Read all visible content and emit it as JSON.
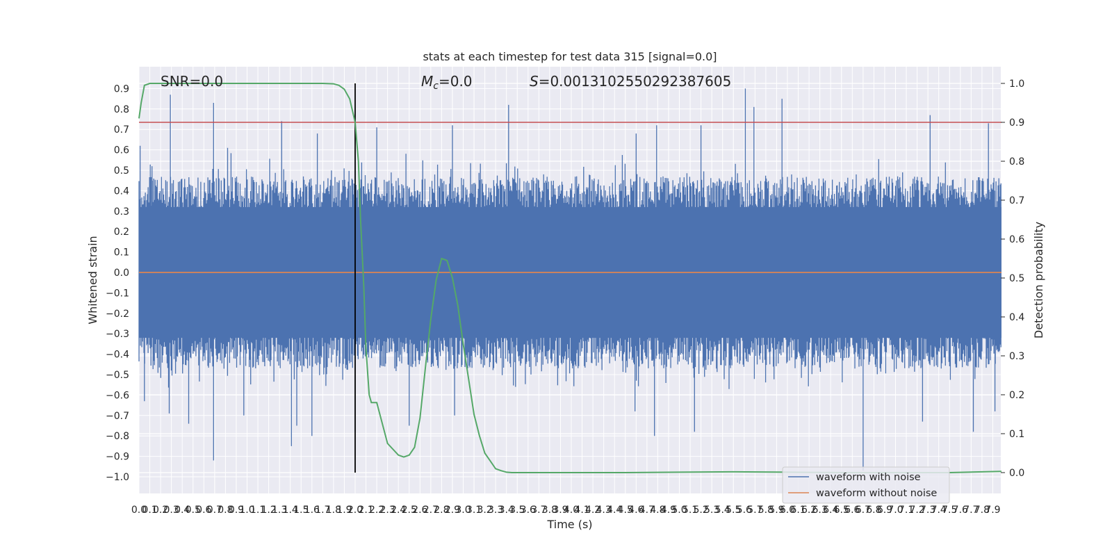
{
  "chart_data": {
    "type": "line",
    "title": "stats at each timestep for test data 315 [signal=0.0]",
    "xlabel": "Time (s)",
    "ylabel": "Whitened strain",
    "y2label": "Detection probability",
    "xlim": [
      0.0,
      8.0
    ],
    "ylim": [
      -1.1,
      1.0
    ],
    "y2lim": [
      -0.05,
      1.05
    ],
    "x_tick_labels": [
      "0.0",
      "0.1",
      "0.2",
      "0.3",
      "0.4",
      "0.5",
      "0.6",
      "0.7",
      "0.8",
      "0.9",
      "1.0",
      "1.1",
      "1.2",
      "1.3",
      "1.4",
      "1.5",
      "1.6",
      "1.7",
      "1.8",
      "1.9",
      "2.0",
      "2.1",
      "2.2",
      "2.3",
      "2.4",
      "2.5",
      "2.6",
      "2.7",
      "2.8",
      "2.9",
      "3.0",
      "3.1",
      "3.2",
      "3.3",
      "3.4",
      "3.5",
      "3.6",
      "3.7",
      "3.8",
      "3.9",
      "4.0",
      "4.1",
      "4.2",
      "4.3",
      "4.4",
      "4.5",
      "4.6",
      "4.7",
      "4.8",
      "4.9",
      "5.0",
      "5.1",
      "5.2",
      "5.3",
      "5.4",
      "5.5",
      "5.6",
      "5.7",
      "5.8",
      "5.9",
      "6.0",
      "6.1",
      "6.2",
      "6.3",
      "6.4",
      "6.5",
      "6.6",
      "6.7",
      "6.8",
      "6.9",
      "7.0",
      "7.1",
      "7.2",
      "7.3",
      "7.4",
      "7.5",
      "7.6",
      "7.7",
      "7.8",
      "7.9"
    ],
    "y_tick_labels": [
      "−1.0",
      "−0.9",
      "−0.8",
      "−0.7",
      "−0.6",
      "−0.5",
      "−0.4",
      "−0.3",
      "−0.2",
      "−0.1",
      "0.0",
      "0.1",
      "0.2",
      "0.3",
      "0.4",
      "0.5",
      "0.6",
      "0.7",
      "0.8",
      "0.9"
    ],
    "y2_tick_labels": [
      "0.0",
      "0.1",
      "0.2",
      "0.3",
      "0.4",
      "0.5",
      "0.6",
      "0.7",
      "0.8",
      "0.9",
      "1.0"
    ],
    "annotations": {
      "snr": "SNR=0.0",
      "mc_symbol": "M",
      "mc_sub": "c",
      "mc_value": "=0.0",
      "s_symbol": "S",
      "s_value": "=0.0013102550292387605"
    },
    "threshold": {
      "value": 0.9,
      "axis": "y2",
      "color": "#c44e52"
    },
    "marker_line": {
      "x": 2.0,
      "color": "#000000"
    },
    "series": [
      {
        "name": "waveform with noise",
        "color": "#4c72b0",
        "axis": "y",
        "envelope": "noise amplitude ±0.35 with spikes to ±0.9",
        "spikes_positive": [
          [
            0.01,
            0.62
          ],
          [
            0.12,
            0.52
          ],
          [
            0.29,
            0.87
          ],
          [
            0.69,
            0.83
          ],
          [
            0.82,
            0.61
          ],
          [
            1.32,
            0.74
          ],
          [
            1.65,
            0.68
          ],
          [
            2.2,
            0.71
          ],
          [
            2.9,
            0.72
          ],
          [
            3.42,
            0.82
          ],
          [
            4.6,
            0.68
          ],
          [
            4.79,
            0.72
          ],
          [
            5.2,
            0.72
          ],
          [
            5.61,
            0.9
          ],
          [
            5.69,
            0.81
          ],
          [
            5.95,
            0.85
          ],
          [
            7.32,
            0.77
          ],
          [
            7.86,
            0.73
          ]
        ],
        "spikes_negative": [
          [
            0.05,
            -0.63
          ],
          [
            0.28,
            -0.69
          ],
          [
            0.46,
            -0.74
          ],
          [
            0.69,
            -0.92
          ],
          [
            0.97,
            -0.7
          ],
          [
            1.41,
            -0.85
          ],
          [
            1.46,
            -0.75
          ],
          [
            1.6,
            -0.8
          ],
          [
            2.0,
            -0.78
          ],
          [
            2.5,
            -0.75
          ],
          [
            2.92,
            -0.7
          ],
          [
            4.59,
            -0.68
          ],
          [
            4.77,
            -0.8
          ],
          [
            5.14,
            -0.78
          ],
          [
            6.7,
            -0.97
          ],
          [
            7.25,
            -0.73
          ],
          [
            7.72,
            -0.78
          ],
          [
            7.92,
            -0.68
          ]
        ]
      },
      {
        "name": "waveform without noise",
        "color": "#dd8452",
        "axis": "y",
        "x": [
          0.0,
          8.0
        ],
        "values": [
          0.0,
          0.0
        ]
      },
      {
        "name": "detection probability",
        "color": "#55a868",
        "axis": "y2",
        "x": [
          0.0,
          0.02,
          0.05,
          0.1,
          0.2,
          0.5,
          1.0,
          1.5,
          1.7,
          1.8,
          1.85,
          1.9,
          1.95,
          2.0,
          2.03,
          2.05,
          2.08,
          2.1,
          2.13,
          2.15,
          2.2,
          2.3,
          2.4,
          2.45,
          2.5,
          2.55,
          2.6,
          2.65,
          2.7,
          2.75,
          2.8,
          2.85,
          2.9,
          2.95,
          3.0,
          3.05,
          3.1,
          3.15,
          3.2,
          3.25,
          3.3,
          3.35,
          3.4,
          3.45,
          3.5,
          3.6,
          4.0,
          4.5,
          5.0,
          5.5,
          6.0,
          6.5,
          7.0,
          7.5,
          8.0
        ],
        "values": [
          0.91,
          0.95,
          0.995,
          1.0,
          1.0,
          1.0,
          1.0,
          1.0,
          1.0,
          0.999,
          0.995,
          0.985,
          0.96,
          0.9,
          0.8,
          0.65,
          0.48,
          0.32,
          0.2,
          0.18,
          0.18,
          0.075,
          0.045,
          0.04,
          0.045,
          0.065,
          0.14,
          0.27,
          0.395,
          0.495,
          0.55,
          0.545,
          0.5,
          0.43,
          0.33,
          0.24,
          0.15,
          0.095,
          0.05,
          0.03,
          0.01,
          0.005,
          0.001,
          0.0,
          0.0,
          0.0,
          0.0,
          0.0,
          0.001,
          0.002,
          0.001,
          0.0,
          0.0,
          0.0,
          0.003
        ]
      }
    ],
    "legend": {
      "position": "lower-right",
      "entries": [
        {
          "label": "waveform with noise",
          "color": "#4c72b0"
        },
        {
          "label": "waveform without noise",
          "color": "#dd8452"
        }
      ]
    },
    "style": {
      "background": "#eaeaf2",
      "grid": true,
      "grid_color": "#ffffff"
    }
  }
}
